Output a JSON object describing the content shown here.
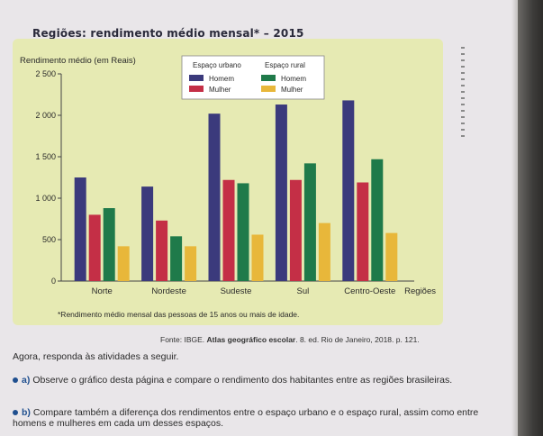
{
  "chart_title": "Regiões: rendimento médio mensal* – 2015",
  "source_prefix": "Fonte: IBGE. ",
  "source_bold": "Atlas geográfico escolar",
  "source_suffix": ". 8. ed. Rio de Janeiro, 2018. p. 121.",
  "prompt": "Agora, responda às atividades a seguir.",
  "questions": [
    {
      "letter": "a)",
      "text": "Observe o gráfico desta página e compare o rendimento dos habitantes entre as regiões brasileiras."
    },
    {
      "letter": "b)",
      "text": "Compare também a diferença dos rendimentos entre o espaço urbano e o espaço rural, assim como entre homens e mulheres em cada um desses espaços."
    }
  ],
  "colors": {
    "urban_men": "#3b3a7c",
    "urban_women": "#c42f46",
    "rural_men": "#1f7a4a",
    "rural_women": "#e8b73a",
    "page": "#e9e6e9",
    "chart_bg": "#e6eab3"
  },
  "chart_data": {
    "type": "bar",
    "ylabel": "Rendimento médio (em Reais)",
    "xlabel": "Regiões",
    "ylim": [
      0,
      2500
    ],
    "yticks": [
      0,
      500,
      1000,
      1500,
      2000,
      2500
    ],
    "ytick_labels": [
      "0",
      "500",
      "1 000",
      "1 500",
      "2 000",
      "2 500"
    ],
    "categories": [
      "Norte",
      "Nordeste",
      "Sudeste",
      "Sul",
      "Centro-Oeste"
    ],
    "legend_groups": [
      {
        "title": "Espaço urbano",
        "series_index": [
          0,
          1
        ]
      },
      {
        "title": "Espaço rural",
        "series_index": [
          2,
          3
        ]
      }
    ],
    "legend_placement": "top-right",
    "grid": false,
    "series": [
      {
        "name": "Homem",
        "group": "Espaço urbano",
        "color": "#3b3a7c",
        "values": [
          1250,
          1140,
          2020,
          2130,
          2180
        ]
      },
      {
        "name": "Mulher",
        "group": "Espaço urbano",
        "color": "#c42f46",
        "values": [
          800,
          730,
          1220,
          1220,
          1190
        ]
      },
      {
        "name": "Homem",
        "group": "Espaço rural",
        "color": "#1f7a4a",
        "values": [
          880,
          540,
          1180,
          1420,
          1470
        ]
      },
      {
        "name": "Mulher",
        "group": "Espaço rural",
        "color": "#e8b73a",
        "values": [
          420,
          420,
          560,
          700,
          580
        ]
      }
    ],
    "footnote": "*Rendimento médio mensal das pessoas de 15 anos ou mais de idade."
  }
}
